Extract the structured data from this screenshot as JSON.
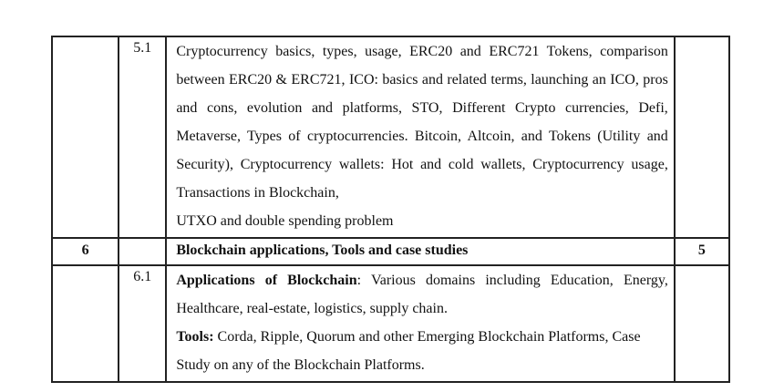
{
  "rows": {
    "row51": {
      "sub": "5.1",
      "text": "Cryptocurrency basics, types, usage, ERC20 and ERC721 Tokens, comparison between ERC20 & ERC721, ICO: basics and related terms, launching an ICO, pros and cons, evolution and platforms, STO, Different Crypto currencies, Defi, Metaverse, Types of cryptocurrencies. Bitcoin, Altcoin, and Tokens (Utility and Security), Cryptocurrency wallets: Hot and cold wallets, Cryptocurrency usage, Transactions in Blockchain,",
      "text_last": "UTXO and double spending problem"
    },
    "module6": {
      "number": "6",
      "title": "Blockchain applications, Tools and case studies",
      "hours": "5"
    },
    "row61": {
      "sub": "6.1",
      "apps_label": "Applications of Blockchain",
      "apps_text": ": Various domains including Education, Energy, Healthcare, real-estate, logistics, supply chain.",
      "tools_label": "Tools:",
      "tools_text": " Corda, Ripple, Quorum and other Emerging Blockchain Platforms, Case Study on any of the Blockchain Platforms."
    }
  }
}
